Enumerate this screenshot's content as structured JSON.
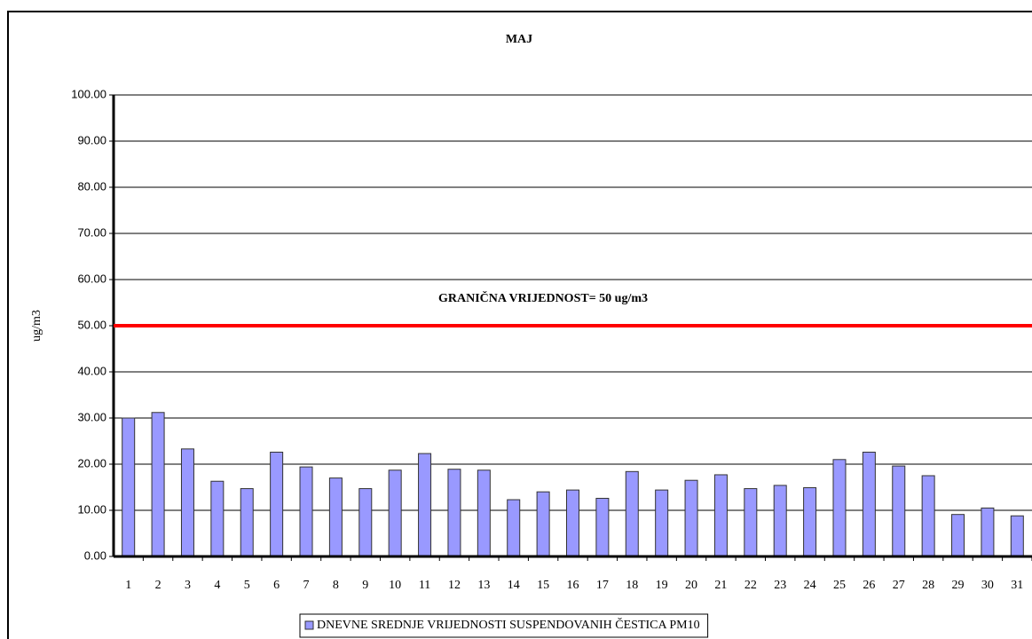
{
  "chart_data": {
    "type": "bar",
    "title": "MAJ",
    "y_label": "ug/m3",
    "annotation": "GRANIČNA VRIJEDNOST= 50 ug/m3",
    "threshold": 50,
    "threshold_color": "#ff0000",
    "categories": [
      "1",
      "2",
      "3",
      "4",
      "5",
      "6",
      "7",
      "8",
      "9",
      "10",
      "11",
      "12",
      "13",
      "14",
      "15",
      "16",
      "17",
      "18",
      "19",
      "20",
      "21",
      "22",
      "23",
      "24",
      "25",
      "26",
      "27",
      "28",
      "29",
      "30",
      "31"
    ],
    "series": [
      {
        "name": "DNEVNE SREDNJE VRIJEDNOSTI SUSPENDOVANIH ČESTICA PM10",
        "color": "#9999ff",
        "values": [
          30.0,
          31.2,
          23.3,
          16.3,
          14.7,
          22.6,
          19.4,
          17.0,
          14.7,
          18.7,
          22.3,
          18.9,
          18.7,
          12.3,
          14.0,
          14.4,
          12.6,
          18.4,
          14.4,
          16.5,
          17.7,
          14.7,
          15.4,
          14.9,
          21.0,
          22.6,
          19.6,
          17.5,
          9.1,
          10.5,
          8.8
        ]
      }
    ],
    "ylim": [
      0,
      100
    ],
    "yticks": [
      {
        "value": 0,
        "label": "0.00"
      },
      {
        "value": 10,
        "label": "10.00"
      },
      {
        "value": 20,
        "label": "20.00"
      },
      {
        "value": 30,
        "label": "30.00"
      },
      {
        "value": 40,
        "label": "40.00"
      },
      {
        "value": 50,
        "label": "50.00"
      },
      {
        "value": 60,
        "label": "60.00"
      },
      {
        "value": 70,
        "label": "70.00"
      },
      {
        "value": 80,
        "label": "80.00"
      },
      {
        "value": 90,
        "label": "90.00"
      },
      {
        "value": 100,
        "label": "100.00"
      }
    ],
    "grid": true,
    "legend": "bottom"
  }
}
